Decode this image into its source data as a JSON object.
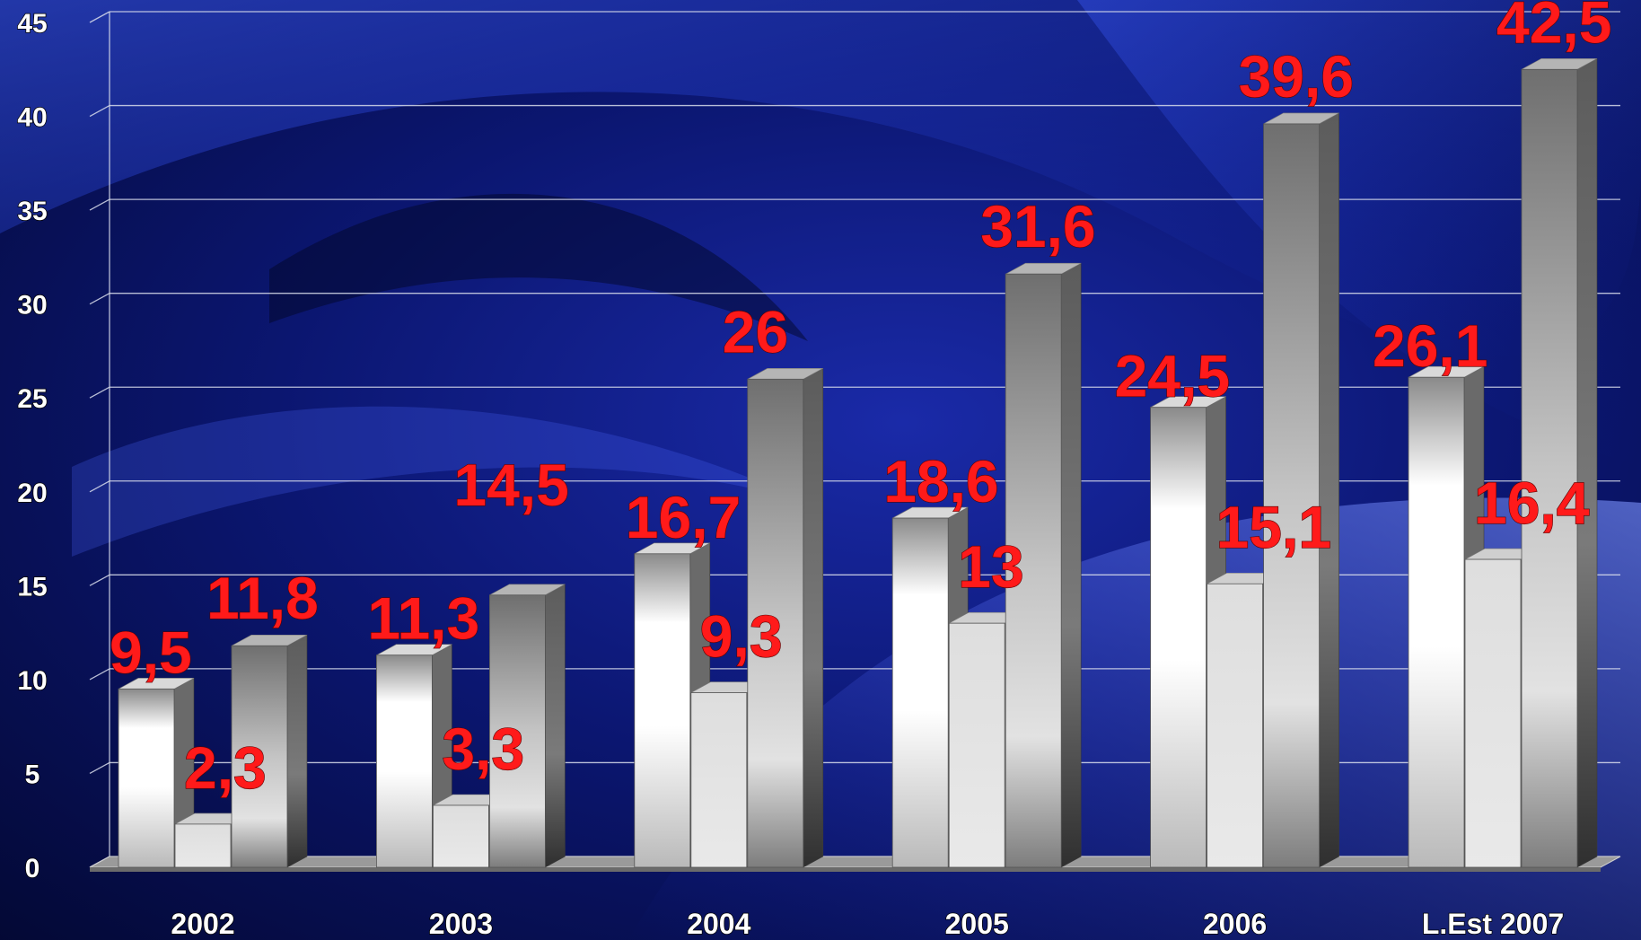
{
  "chart_data": {
    "type": "bar",
    "title": "",
    "xlabel": "",
    "ylabel": "",
    "categories": [
      "2002",
      "2003",
      "2004",
      "2005",
      "2006",
      "L.Est 2007"
    ],
    "series": [
      {
        "values": [
          9.5,
          11.3,
          16.7,
          18.6,
          24.5,
          26.1
        ]
      },
      {
        "values": [
          2.3,
          3.3,
          9.3,
          13,
          15.1,
          16.4
        ]
      },
      {
        "values": [
          11.8,
          14.5,
          26,
          31.6,
          39.6,
          42.5
        ]
      }
    ],
    "data_labels": [
      [
        "9,5",
        "11,3",
        "16,7",
        "18,6",
        "24,5",
        "26,1"
      ],
      [
        "2,3",
        "3,3",
        "9,3",
        "13",
        "15,1",
        "16,4"
      ],
      [
        "11,8",
        "14,5",
        "26",
        "31,6",
        "39,6",
        "42,5"
      ]
    ],
    "y_ticks": [
      "0",
      "5",
      "10",
      "15",
      "20",
      "25",
      "30",
      "35",
      "40",
      "45"
    ],
    "ylim": [
      0,
      45
    ],
    "grid": true,
    "legend": "none",
    "colors": {
      "label": "#ff1a1a",
      "tick_text": "#ffffff",
      "grid": "#d8dceb",
      "background_dark": "#030a3a",
      "background_light": "#2a48ff"
    }
  }
}
